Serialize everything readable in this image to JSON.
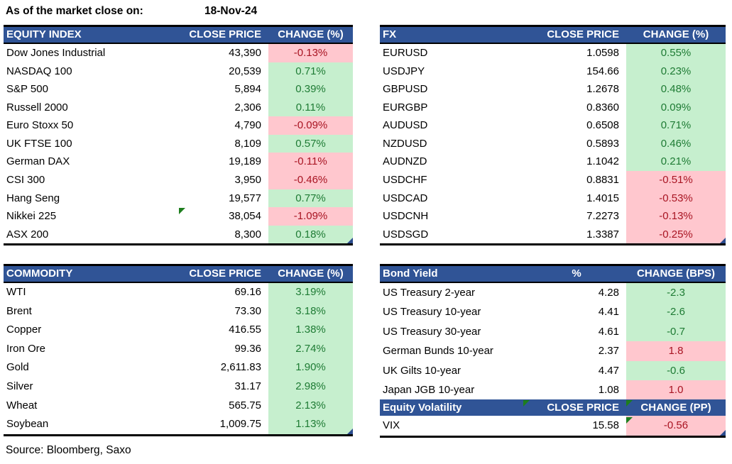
{
  "title": {
    "label": "As of the market close on:",
    "date": "18-Nov-24"
  },
  "source": "Source: Bloomberg, Saxo",
  "colors": {
    "header_bg": "#305496",
    "header_text": "#FFFFFF",
    "green_bg": "#C6EFCE",
    "green_text": "#1E7B34",
    "red_bg": "#FFC7CE",
    "red_text": "#A81422",
    "note_green": "#1E7E1E",
    "handle_blue": "#2A4B8D"
  },
  "icons": {
    "cell_note": "green-corner-triangle",
    "range_handle": "blue-corner-triangle"
  },
  "tables": {
    "equity": {
      "headers": [
        "EQUITY INDEX",
        "CLOSE PRICE",
        "CHANGE (%)"
      ],
      "rows": [
        {
          "name": "Dow Jones Industrial",
          "value": "43,390",
          "change": "-0.13%",
          "fill": "red"
        },
        {
          "name": "NASDAQ 100",
          "value": "20,539",
          "change": "0.71%",
          "fill": "green"
        },
        {
          "name": "S&P 500",
          "value": "5,894",
          "change": "0.39%",
          "fill": "green"
        },
        {
          "name": "Russell 2000",
          "value": "2,306",
          "change": "0.11%",
          "fill": "green"
        },
        {
          "name": "Euro Stoxx 50",
          "value": "4,790",
          "change": "-0.09%",
          "fill": "red"
        },
        {
          "name": "UK FTSE 100",
          "value": "8,109",
          "change": "0.57%",
          "fill": "green"
        },
        {
          "name": "German DAX",
          "value": "19,189",
          "change": "-0.11%",
          "fill": "red"
        },
        {
          "name": "CSI 300",
          "value": "3,950",
          "change": "-0.46%",
          "fill": "red"
        },
        {
          "name": "Hang Seng",
          "value": "19,577",
          "change": "0.77%",
          "fill": "green"
        },
        {
          "name": "Nikkei 225",
          "value": "38,054",
          "change": "-1.09%",
          "fill": "red"
        },
        {
          "name": "ASX 200",
          "value": "8,300",
          "change": "0.18%",
          "fill": "green"
        }
      ]
    },
    "fx": {
      "headers": [
        "FX",
        "CLOSE PRICE",
        "CHANGE (%)"
      ],
      "rows": [
        {
          "name": "EURUSD",
          "value": "1.0598",
          "change": "0.55%",
          "fill": "green"
        },
        {
          "name": "USDJPY",
          "value": "154.66",
          "change": "0.23%",
          "fill": "green"
        },
        {
          "name": "GBPUSD",
          "value": "1.2678",
          "change": "0.48%",
          "fill": "green"
        },
        {
          "name": "EURGBP",
          "value": "0.8360",
          "change": "0.09%",
          "fill": "green"
        },
        {
          "name": "AUDUSD",
          "value": "0.6508",
          "change": "0.71%",
          "fill": "green"
        },
        {
          "name": "NZDUSD",
          "value": "0.5893",
          "change": "0.46%",
          "fill": "green"
        },
        {
          "name": "AUDNZD",
          "value": "1.1042",
          "change": "0.21%",
          "fill": "green"
        },
        {
          "name": "USDCHF",
          "value": "0.8831",
          "change": "-0.51%",
          "fill": "red"
        },
        {
          "name": "USDCAD",
          "value": "1.4015",
          "change": "-0.53%",
          "fill": "red"
        },
        {
          "name": "USDCNH",
          "value": "7.2273",
          "change": "-0.13%",
          "fill": "red"
        },
        {
          "name": "USDSGD",
          "value": "1.3387",
          "change": "-0.25%",
          "fill": "red"
        }
      ]
    },
    "commodity": {
      "headers": [
        "COMMODITY",
        "CLOSE PRICE",
        "CHANGE (%)"
      ],
      "rows": [
        {
          "name": "WTI",
          "value": "69.16",
          "change": "3.19%",
          "fill": "green"
        },
        {
          "name": "Brent",
          "value": "73.30",
          "change": "3.18%",
          "fill": "green"
        },
        {
          "name": "Copper",
          "value": "416.55",
          "change": "1.38%",
          "fill": "green"
        },
        {
          "name": "Iron Ore",
          "value": "99.36",
          "change": "2.74%",
          "fill": "green"
        },
        {
          "name": "Gold",
          "value": "2,611.83",
          "change": "1.90%",
          "fill": "green"
        },
        {
          "name": "Silver",
          "value": "31.17",
          "change": "2.98%",
          "fill": "green"
        },
        {
          "name": "Wheat",
          "value": "565.75",
          "change": "2.13%",
          "fill": "green"
        },
        {
          "name": "Soybean",
          "value": "1,009.75",
          "change": "1.13%",
          "fill": "green"
        }
      ]
    },
    "bond": {
      "headers": [
        "Bond Yield",
        "%",
        "CHANGE (BPS)"
      ],
      "rows": [
        {
          "name": "US Treasury 2-year",
          "value": "4.28",
          "change": "-2.3",
          "fill": "green"
        },
        {
          "name": "US Treasury 10-year",
          "value": "4.41",
          "change": "-2.6",
          "fill": "green"
        },
        {
          "name": "US Treasury 30-year",
          "value": "4.61",
          "change": "-0.7",
          "fill": "green"
        },
        {
          "name": "German Bunds 10-year",
          "value": "2.37",
          "change": "1.8",
          "fill": "red"
        },
        {
          "name": "UK Gilts 10-year",
          "value": "4.47",
          "change": "-0.6",
          "fill": "green"
        },
        {
          "name": "Japan JGB 10-year",
          "value": "1.08",
          "change": "1.0",
          "fill": "red"
        }
      ]
    },
    "volatility": {
      "headers": [
        "Equity Volatility",
        "CLOSE PRICE",
        "CHANGE (PP)"
      ],
      "rows": [
        {
          "name": "VIX",
          "value": "15.58",
          "change": "-0.56",
          "fill": "red"
        }
      ]
    }
  }
}
